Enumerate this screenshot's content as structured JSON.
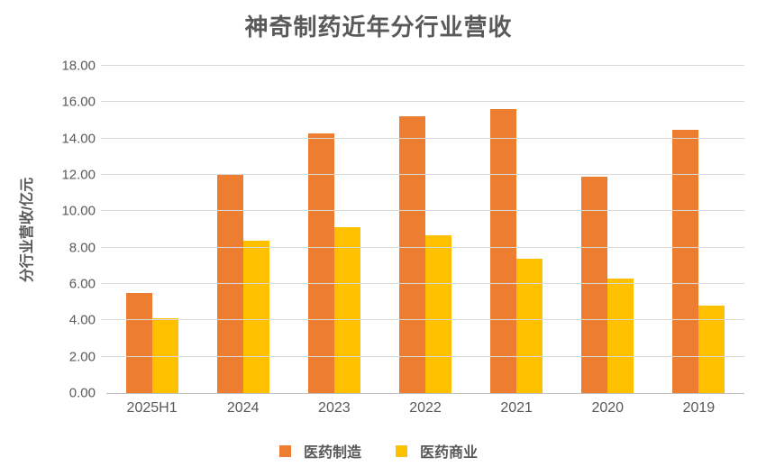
{
  "chart_data": {
    "type": "bar",
    "title": "神奇制药近年分行业营收",
    "ylabel": "分行业营收/亿元",
    "xlabel": "",
    "categories": [
      "2025H1",
      "2024",
      "2023",
      "2022",
      "2021",
      "2020",
      "2019"
    ],
    "series": [
      {
        "name": "医药制造",
        "color": "#ED7D31",
        "values": [
          5.5,
          12.0,
          14.3,
          15.2,
          15.6,
          11.9,
          14.5
        ]
      },
      {
        "name": "医药商业",
        "color": "#FFC000",
        "values": [
          4.1,
          8.4,
          9.1,
          8.7,
          7.4,
          6.3,
          4.8
        ]
      }
    ],
    "ylim": [
      0,
      18
    ],
    "ytick_step": 2,
    "ytick_labels": [
      "0.00",
      "2.00",
      "4.00",
      "6.00",
      "8.00",
      "10.00",
      "12.00",
      "14.00",
      "16.00",
      "18.00"
    ],
    "grid": true,
    "legend_position": "bottom"
  },
  "colors": {
    "text": "#595959",
    "gridline": "#D9D9D9",
    "axis_line": "#BFBFBF",
    "background": "#FFFFFF",
    "series_manufacturing": "#ED7D31",
    "series_commerce": "#FFC000"
  }
}
